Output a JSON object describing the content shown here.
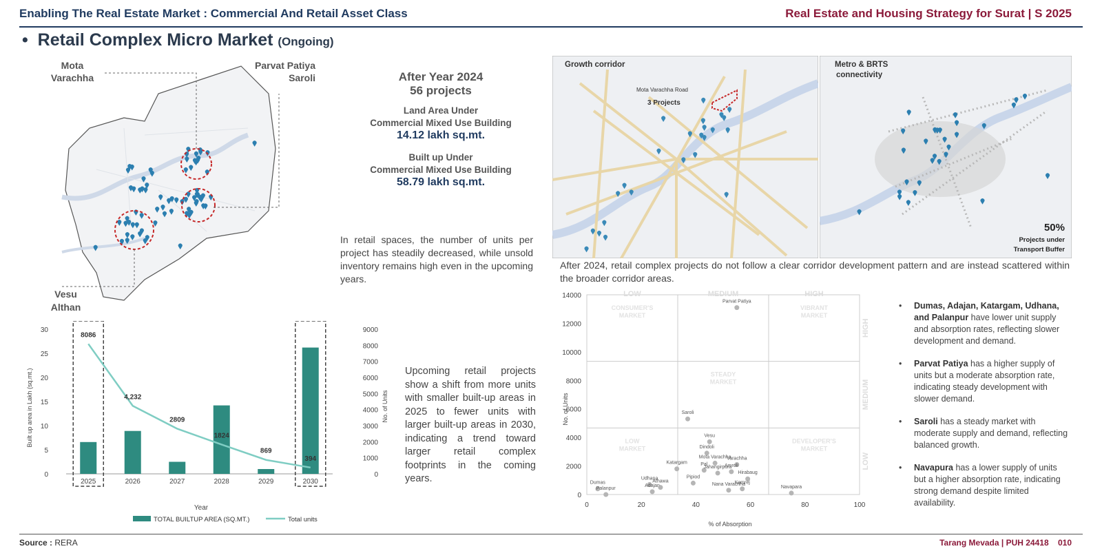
{
  "header": {
    "left": "Enabling The Real Estate Market : Commercial And Retail Asset Class",
    "right": "Real Estate and Housing Strategy for Surat | S 2025"
  },
  "title": {
    "bullet": "•",
    "main": "Retail Complex Micro Market",
    "sub": "(Ongoing)"
  },
  "map_labels": {
    "mota1": "Mota",
    "mota2": "Varachha",
    "parvat1": "Parvat Patiya",
    "parvat2": "Saroli",
    "vesu1": "Vesu",
    "vesu2": "Althan"
  },
  "stats": {
    "year_line": "After Year 2024",
    "projects_line": "56 projects",
    "land_label1": "Land Area Under",
    "land_label2": "Commercial Mixed Use Building",
    "land_value": "14.12 lakh sq.mt.",
    "built_label1": "Built up Under",
    "built_label2": "Commercial Mixed Use Building",
    "built_value": "58.79 lakh sq.mt."
  },
  "retail_para": "In retail spaces, the number of units per project has steadily decreased, while unsold inventory remains high even in the upcoming years.",
  "upcoming_para": "Upcoming retail projects show a shift from more units with smaller built-up areas in 2025 to fewer units with larger built-up areas in 2030, indicating a trend toward larger retail complex footprints in the coming years.",
  "corridor_map": {
    "title": "Growth corridor",
    "road_label": "Mota Varachha Road",
    "projects_label": "3 Projects"
  },
  "metro_map": {
    "title1": "Metro & BRTS",
    "title2": "connectivity",
    "pct": "50%",
    "pct_label1": "Projects under",
    "pct_label2": "Transport Buffer"
  },
  "corridor_para": "After 2024, retail complex projects do not follow a clear corridor development pattern and are instead scattered within the broader corridor areas.",
  "bar_chart": {
    "type": "bar+line",
    "categories": [
      "2025",
      "2026",
      "2027",
      "2028",
      "2029",
      "2030"
    ],
    "series": [
      {
        "name": "TOTAL BUILTUP AREA (SQ.MT.)",
        "values": [
          6.6,
          8.9,
          2.5,
          14.2,
          1.0,
          26.2
        ],
        "color": "#2e8b80"
      },
      {
        "name": "Total units",
        "values": [
          8086,
          4232,
          2809,
          1824,
          869,
          394
        ],
        "color": "#7fcdc3"
      }
    ],
    "unit_labels": [
      "8086",
      "4,232",
      "2809",
      "1824",
      "869",
      "394"
    ],
    "y_ticks": [
      "0",
      "5",
      "10",
      "15",
      "20",
      "25",
      "30"
    ],
    "y2_ticks": [
      "0",
      "1000",
      "2000",
      "3000",
      "4000",
      "5000",
      "6000",
      "7000",
      "8000",
      "9000"
    ],
    "ylim": [
      0,
      30
    ],
    "y2lim": [
      0,
      9000
    ],
    "xlabel": "Year",
    "ylabel": "Built up area in Lakh (sq.mt.)",
    "y2label": "No. of Units"
  },
  "scatter_chart": {
    "type": "scatter",
    "points": [
      {
        "label": "Parvat Patiya",
        "x": 55,
        "y": 13100
      },
      {
        "label": "Saroli",
        "x": 37,
        "y": 5300
      },
      {
        "label": "Vesu",
        "x": 45,
        "y": 3700
      },
      {
        "label": "Dindoli",
        "x": 44,
        "y": 2900
      },
      {
        "label": "Katargam",
        "x": 33,
        "y": 1800
      },
      {
        "label": "Mota Varachha",
        "x": 47,
        "y": 2200
      },
      {
        "label": "Pal",
        "x": 43,
        "y": 1700
      },
      {
        "label": "Varachha",
        "x": 55,
        "y": 2100
      },
      {
        "label": "Jahangirpura",
        "x": 48,
        "y": 1500
      },
      {
        "label": "Amroli",
        "x": 53,
        "y": 1600
      },
      {
        "label": "Pipiod",
        "x": 39,
        "y": 800
      },
      {
        "label": "Hirabaug",
        "x": 59,
        "y": 1100
      },
      {
        "label": "Navapara",
        "x": 75,
        "y": 100
      },
      {
        "label": "Kamrej",
        "x": 57,
        "y": 400
      },
      {
        "label": "Nana Varachha",
        "x": 52,
        "y": 300
      },
      {
        "label": "Dumas",
        "x": 4,
        "y": 400
      },
      {
        "label": "Palanpur",
        "x": 7,
        "y": 0
      },
      {
        "label": "Udhana",
        "x": 23,
        "y": 700
      },
      {
        "label": "Adajan",
        "x": 24,
        "y": 200
      },
      {
        "label": "Athawa",
        "x": 27,
        "y": 500
      }
    ],
    "x_ticks": [
      "0",
      "20",
      "40",
      "60",
      "80",
      "100"
    ],
    "y_ticks": [
      "0",
      "2000",
      "4000",
      "6000",
      "8000",
      "10000",
      "12000",
      "14000"
    ],
    "xlim": [
      0,
      100
    ],
    "ylim": [
      0,
      14000
    ],
    "xlabel": "% of Absorption",
    "ylabel": "No. of Units",
    "col_labels": [
      "LOW",
      "MEDIUM",
      "HIGH"
    ],
    "row_labels": [
      "HIGH",
      "MEDIUM",
      "LOW"
    ],
    "q_consumers1": "CONSUMER'S",
    "q_consumers2": "MARKET",
    "q_vibrant1": "VIBRANT",
    "q_vibrant2": "MARKET",
    "q_steady1": "STEADY",
    "q_steady2": "MARKET",
    "q_low1": "LOW",
    "q_low2": "MARKET",
    "q_dev1": "DEVELOPER'S",
    "q_dev2": "MARKET"
  },
  "bullets": [
    {
      "bold": "Dumas, Adajan, Katargam, Udhana, and Palanpur",
      "text": " have lower unit supply and absorption rates, reflecting slower development and demand."
    },
    {
      "bold": "Parvat Patiya",
      "text": " has a higher supply of units but a moderate absorption rate, indicating steady development with slower demand."
    },
    {
      "bold": "Saroli",
      "text": " has a steady market with moderate supply and demand, reflecting balanced growth."
    },
    {
      "bold": "Navapura",
      "text": " has a lower supply of units but a higher absorption rate, indicating strong demand despite limited availability."
    }
  ],
  "footer": {
    "source_label": "Source :",
    "source": "RERA",
    "right": "Tarang Mevada | PUH 24418",
    "page": "010"
  }
}
